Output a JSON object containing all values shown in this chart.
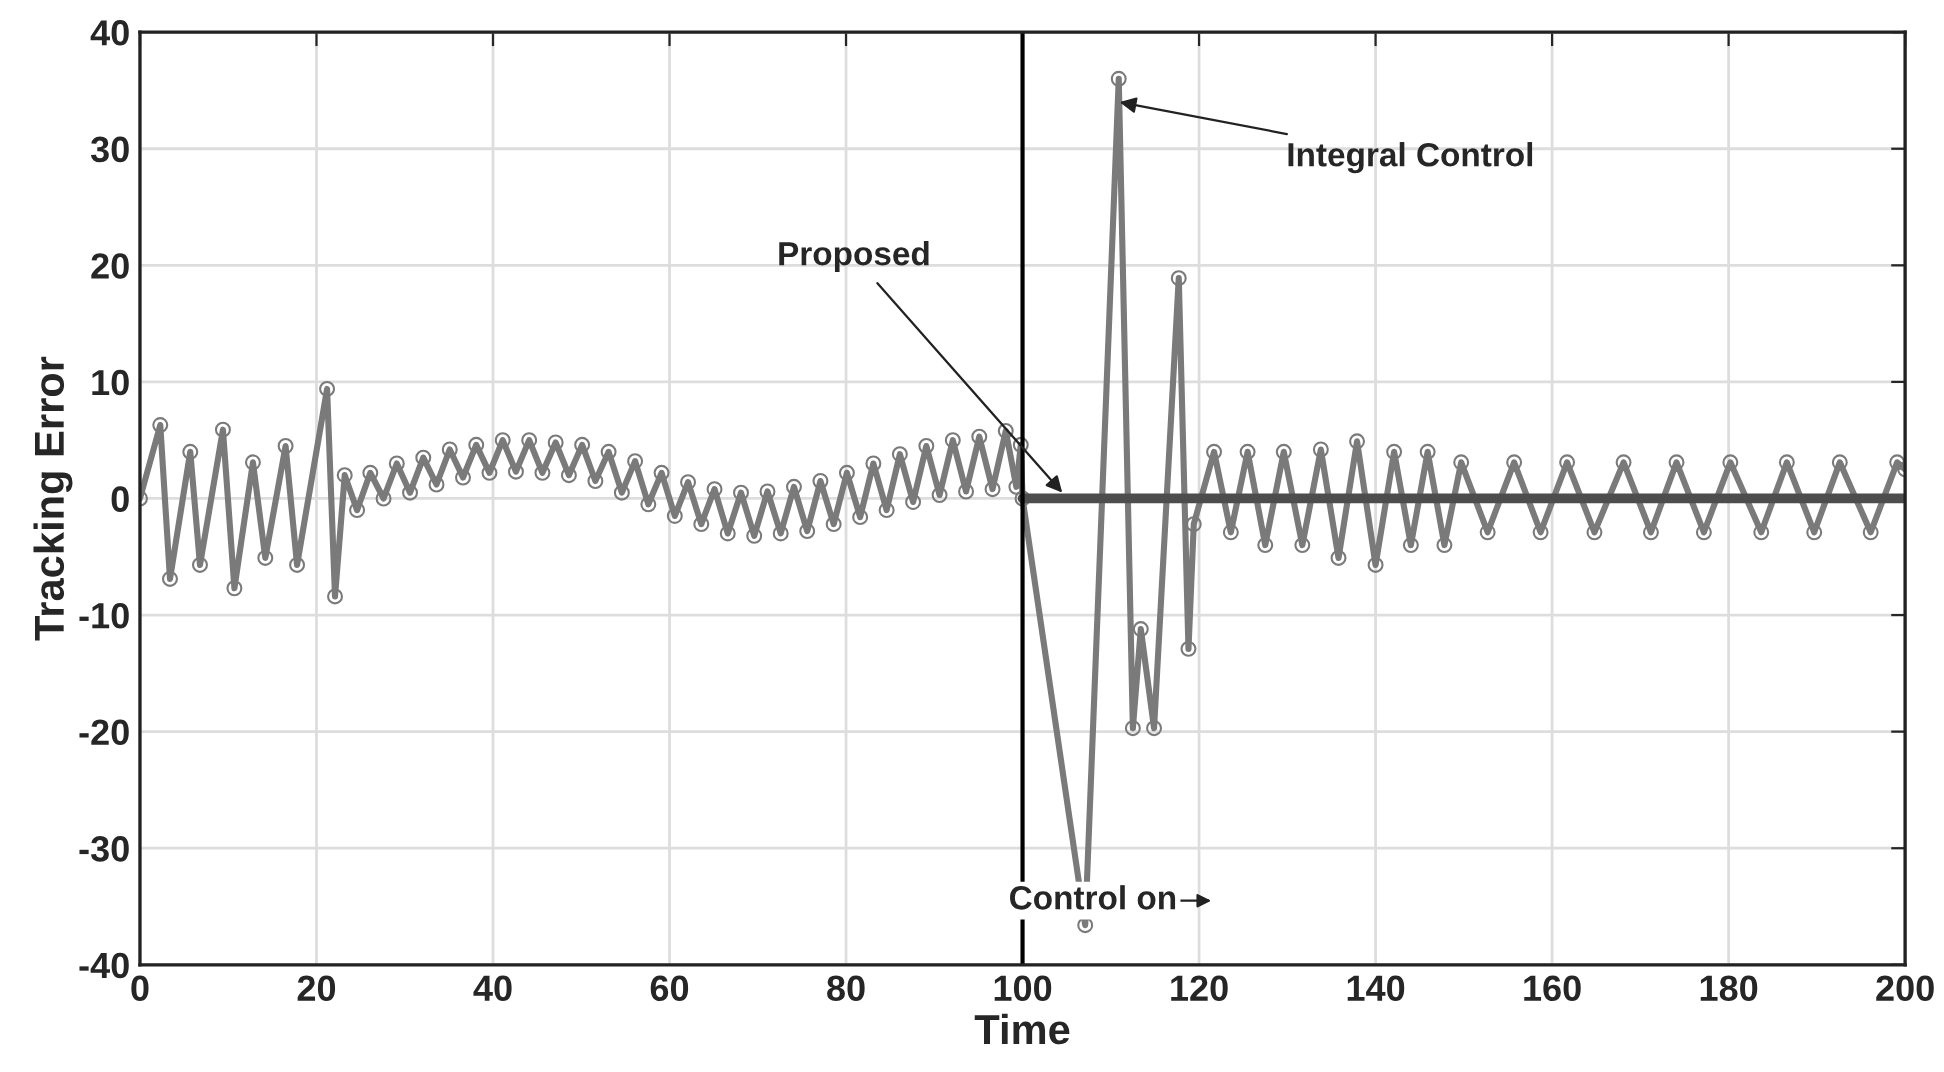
{
  "chart_data": {
    "type": "line",
    "xlabel": "Time",
    "ylabel": "Tracking Error",
    "xlim": [
      0,
      200
    ],
    "ylim": [
      -40,
      40
    ],
    "xticks": [
      0,
      20,
      40,
      60,
      80,
      100,
      120,
      140,
      160,
      180,
      200
    ],
    "yticks": [
      -40,
      -30,
      -20,
      -10,
      0,
      10,
      20,
      30,
      40
    ],
    "grid": true,
    "series": [
      {
        "marker": "circle",
        "color": "#7a7a7a",
        "x": [
          0,
          2.3,
          3.4,
          5.7,
          6.8,
          9.4,
          10.7,
          12.8,
          14.2,
          16.5,
          17.8,
          21.2,
          22.1,
          23.2,
          24.6,
          26.1,
          27.6,
          29.1,
          30.6,
          32.1,
          33.6,
          35.1,
          36.6,
          38.1,
          39.6,
          41.1,
          42.6,
          44.1,
          45.6,
          47.1,
          48.6,
          50.1,
          51.6,
          53.1,
          54.6,
          56.1,
          57.6,
          59.1,
          60.6,
          62.1,
          63.6,
          65.1,
          66.6,
          68.1,
          69.6,
          71.1,
          72.6,
          74.1,
          75.6,
          77.1,
          78.6,
          80.1,
          81.6,
          83.1,
          84.6,
          86.1,
          87.6,
          89.1,
          90.6,
          92.1,
          93.6,
          95.1,
          96.6,
          98.1,
          99.3,
          99.8,
          100,
          107.1,
          110.9,
          112.5,
          113.4,
          114.9,
          117.7,
          118.8,
          119.4,
          121.7,
          123.6,
          125.5,
          127.5,
          129.6,
          131.7,
          133.8,
          135.8,
          137.9,
          140,
          142.1,
          144,
          145.9,
          147.8,
          149.7,
          152.7,
          155.7,
          158.7,
          161.7,
          164.8,
          168.1,
          171.2,
          174.1,
          177.2,
          180.2,
          183.7,
          186.6,
          189.7,
          192.6,
          196.1,
          199.1,
          200
        ],
        "values": [
          0,
          6.3,
          -6.9,
          4,
          -5.7,
          5.9,
          -7.7,
          3.1,
          -5.1,
          4.5,
          -5.7,
          9.4,
          -8.4,
          2,
          -1,
          2.2,
          0,
          3,
          0.5,
          3.5,
          1.2,
          4.2,
          1.8,
          4.6,
          2.2,
          5,
          2.3,
          5,
          2.2,
          4.8,
          2,
          4.6,
          1.5,
          4,
          0.5,
          3.2,
          -0.5,
          2.2,
          -1.5,
          1.4,
          -2.2,
          0.8,
          -3,
          0.5,
          -3.2,
          0.6,
          -3,
          1,
          -2.8,
          1.5,
          -2.2,
          2.2,
          -1.6,
          3,
          -1,
          3.8,
          -0.3,
          4.5,
          0.3,
          5,
          0.6,
          5.3,
          0.8,
          5.8,
          1,
          4.6,
          0,
          -36.6,
          36,
          -19.7,
          -11.2,
          -19.7,
          18.9,
          -12.9,
          -2.2,
          4,
          -2.9,
          4,
          -4,
          4,
          -4,
          4.2,
          -5.1,
          4.9,
          -5.7,
          4,
          -4,
          4,
          -4,
          3.1,
          -2.9,
          3.1,
          -2.9,
          3.1,
          -2.9,
          3.1,
          -2.9,
          3.1,
          -2.9,
          3.1,
          -2.9,
          3.1,
          -2.9,
          3.1,
          -2.9,
          3.1,
          2.5
        ]
      },
      {
        "marker": "none",
        "color": "#4d4d4d",
        "x": [
          100,
          200
        ],
        "values": [
          0,
          0
        ]
      }
    ],
    "ref_lines": [
      {
        "axis": "x",
        "value": 100,
        "color": "#000000"
      }
    ],
    "annotations": [
      {
        "text": "Integral Control",
        "x": 111,
        "y": 34
      },
      {
        "text": "Proposed",
        "x": 104.5,
        "y": 0.5
      },
      {
        "text": "Control on",
        "x": 100,
        "y": -34.5
      }
    ]
  }
}
